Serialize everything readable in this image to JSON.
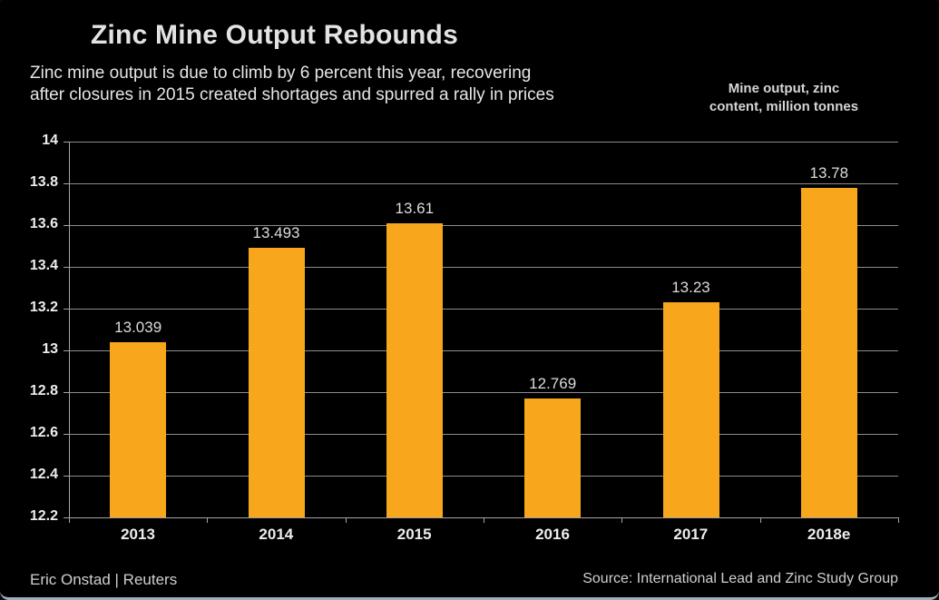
{
  "header": {
    "title": "Zinc Mine Output Rebounds",
    "subtitle_line1": "Zinc mine output is due to climb by 6 percent this year, recovering",
    "subtitle_line2": "after closures in 2015 created shortages and spurred a rally in prices",
    "units_label_line1": "Mine output, zinc",
    "units_label_line2": "content, million tonnes"
  },
  "footer": {
    "byline": "Eric Onstad | Reuters",
    "source": "Source: International Lead and Zinc Study Group"
  },
  "colors": {
    "background": "#000000",
    "bar": "#F8A61B",
    "gridline": "#8C8C8C",
    "axis_line": "#A3A3A3",
    "axis_text": "#EDEDED",
    "data_label_text": "#DCDCDC",
    "window_edge": "#9FB0BC"
  },
  "chart_data": {
    "type": "bar",
    "title": "Zinc Mine Output Rebounds",
    "subtitle": "Zinc mine output is due to climb by 6 percent this year, recovering after closures in 2015 created shortages and spurred a rally in prices",
    "ylabel": "Mine output, zinc content, million tonnes",
    "categories": [
      "2013",
      "2014",
      "2015",
      "2016",
      "2017",
      "2018e"
    ],
    "values": [
      13.039,
      13.493,
      13.61,
      12.769,
      13.23,
      13.78
    ],
    "data_labels": [
      "13.039",
      "13.493",
      "13.61",
      "12.769",
      "13.23",
      "13.78"
    ],
    "ylim": [
      12.2,
      14
    ],
    "ytick_step": 0.2,
    "yticks": [
      "14",
      "13.8",
      "13.6",
      "13.4",
      "13.2",
      "13",
      "12.8",
      "12.6",
      "12.4",
      "12.2"
    ],
    "grid": true,
    "legend": "none",
    "bar_color": "#F8A61B"
  }
}
